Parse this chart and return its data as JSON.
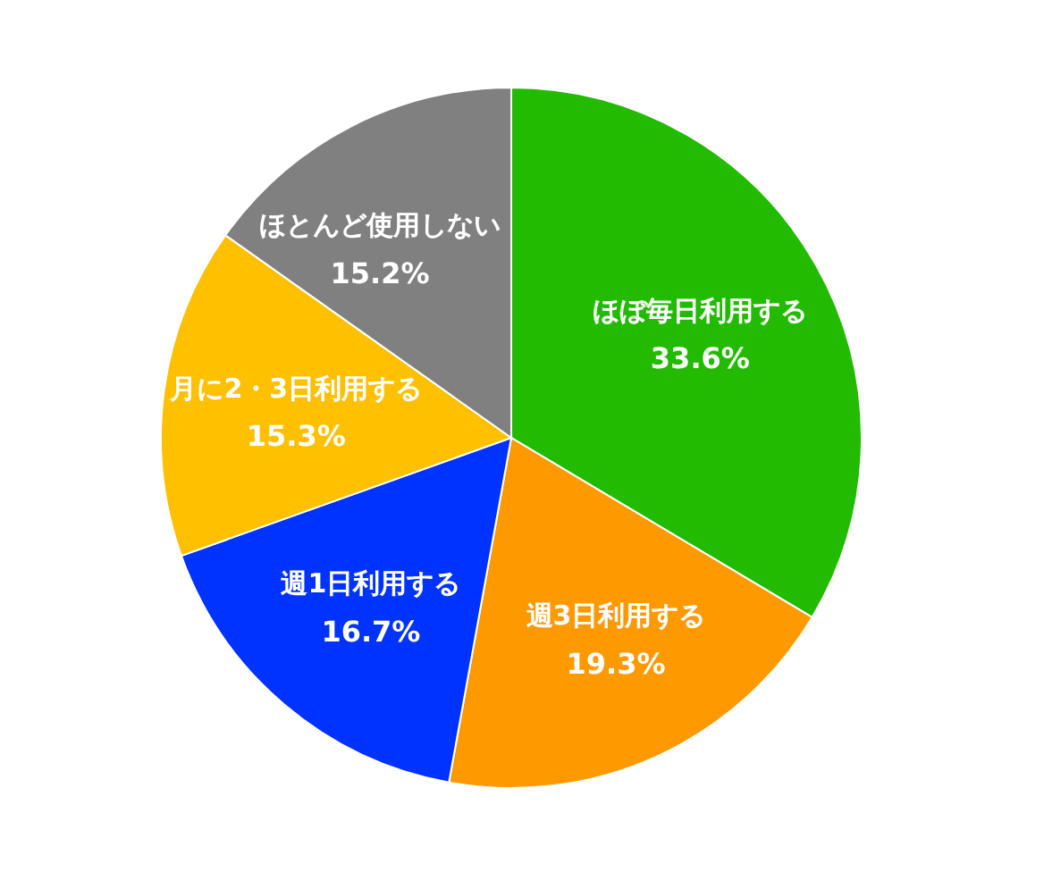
{
  "chart_data": {
    "type": "pie",
    "categories": [
      "ほぼ毎日利用する",
      "週3日利用する",
      "週1日利用する",
      "月に2・3日利用する",
      "ほとんど使用しない"
    ],
    "values": [
      33.6,
      19.3,
      16.7,
      15.3,
      15.2
    ],
    "colors": [
      "#22bb00",
      "#ff9900",
      "#0033ff",
      "#ffc000",
      "#808080"
    ],
    "value_labels": [
      "33.6%",
      "19.3%",
      "16.7%",
      "15.3%",
      "15.2%"
    ]
  }
}
